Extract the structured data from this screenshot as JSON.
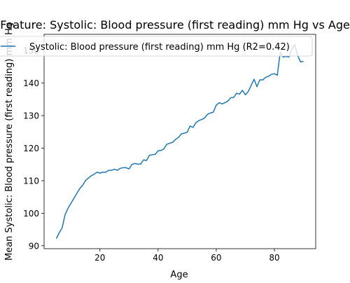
{
  "chart_data": {
    "type": "line",
    "title": "Feature: Systolic: Blood pressure (first reading) mm Hg vs Age",
    "xlabel": "Age",
    "ylabel": "Mean Systolic: Blood pressure (first reading) mm Hg",
    "xlim": [
      0.8,
      94.2
    ],
    "ylim": [
      89.1,
      155.0
    ],
    "xticks": [
      20,
      40,
      60,
      80
    ],
    "yticks": [
      90,
      100,
      110,
      120,
      130,
      140,
      150
    ],
    "grid": false,
    "legend_position": "top-right",
    "series": [
      {
        "name": "Systolic: Blood pressure (first reading) mm Hg (R2=0.42)",
        "color": "#1f77b4",
        "x": [
          5,
          6,
          7,
          8,
          9,
          10,
          11,
          12,
          13,
          14,
          15,
          16,
          17,
          18,
          19,
          20,
          21,
          22,
          23,
          24,
          25,
          26,
          27,
          28,
          29,
          30,
          31,
          32,
          33,
          34,
          35,
          36,
          37,
          38,
          39,
          40,
          41,
          42,
          43,
          44,
          45,
          46,
          47,
          48,
          49,
          50,
          51,
          52,
          53,
          54,
          55,
          56,
          57,
          58,
          59,
          60,
          61,
          62,
          63,
          64,
          65,
          66,
          67,
          68,
          69,
          70,
          71,
          72,
          73,
          74,
          75,
          76,
          77,
          78,
          79,
          80,
          81,
          82,
          83,
          84,
          85,
          86,
          87,
          88,
          89,
          90
        ],
        "y": [
          92.2,
          94.0,
          95.5,
          99.5,
          101.5,
          103.0,
          104.5,
          106.0,
          107.5,
          108.5,
          110.0,
          110.8,
          111.5,
          112.0,
          112.6,
          112.3,
          112.6,
          112.6,
          113.2,
          113.2,
          113.5,
          113.2,
          113.8,
          114.0,
          114.0,
          113.6,
          115.0,
          115.3,
          115.1,
          115.1,
          116.4,
          116.2,
          117.8,
          118.0,
          118.1,
          119.2,
          119.3,
          119.8,
          121.2,
          121.5,
          121.8,
          122.7,
          123.3,
          124.4,
          124.6,
          124.9,
          126.8,
          126.4,
          127.8,
          128.5,
          128.8,
          129.3,
          130.4,
          130.8,
          131.1,
          133.2,
          134.0,
          133.6,
          134.0,
          134.5,
          135.5,
          135.6,
          136.9,
          136.6,
          137.8,
          136.4,
          137.4,
          139.3,
          141.2,
          138.9,
          141.0,
          141.0,
          141.8,
          142.1,
          142.7,
          142.9,
          142.4,
          149.5,
          148.0,
          148.2,
          148.0,
          150.5,
          151.8,
          148.5,
          146.5,
          146.7
        ]
      }
    ]
  }
}
